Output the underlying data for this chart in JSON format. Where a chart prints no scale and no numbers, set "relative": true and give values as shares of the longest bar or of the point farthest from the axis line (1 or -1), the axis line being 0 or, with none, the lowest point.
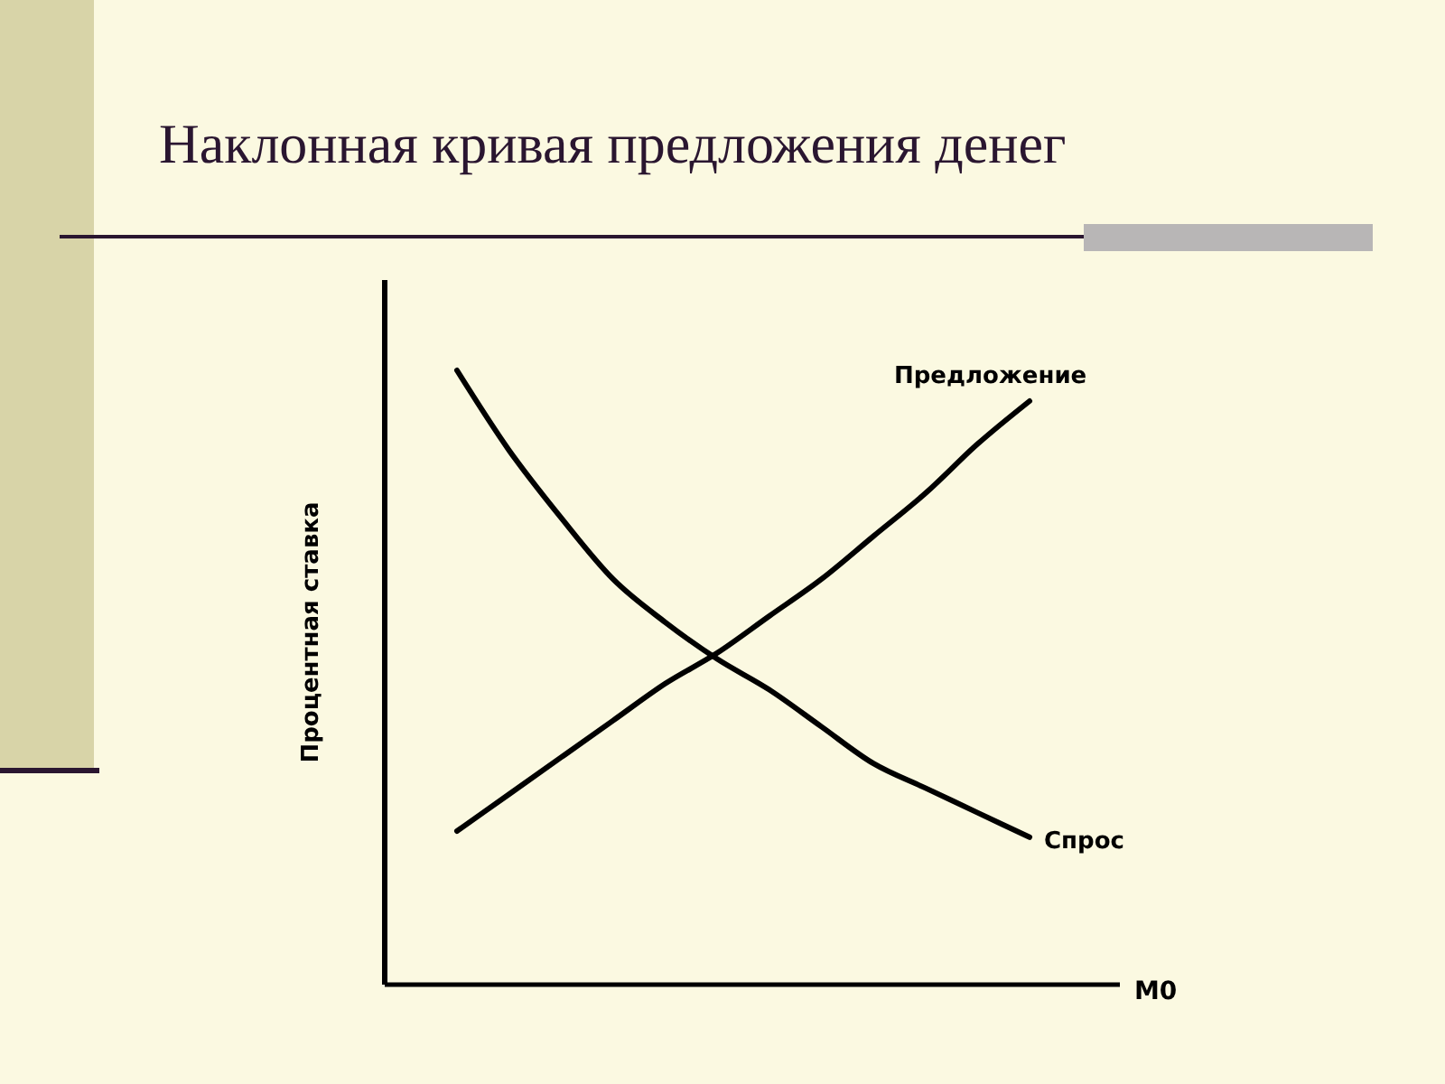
{
  "chart_data": {
    "type": "line",
    "title": "Наклонная кривая предложения денег",
    "xlabel": "M0",
    "ylabel": "Процентная ставка",
    "relative": true,
    "legend": false,
    "categories": [
      null,
      null,
      null,
      null,
      null,
      null,
      null,
      null,
      null,
      null,
      null,
      null
    ],
    "series": [
      {
        "name": "Спрос",
        "color": "#000000",
        "values": [
          1,
          0.87,
          0.76,
          0.66,
          0.59,
          0.53,
          0.48,
          0.42,
          0.36,
          0.32,
          0.28,
          0.24
        ]
      },
      {
        "name": "Предложение",
        "color": "#000000",
        "values": [
          0.25,
          0.31,
          0.37,
          0.43,
          0.49,
          0.54,
          0.6,
          0.66,
          0.73,
          0.8,
          0.88,
          0.95
        ]
      }
    ]
  }
}
